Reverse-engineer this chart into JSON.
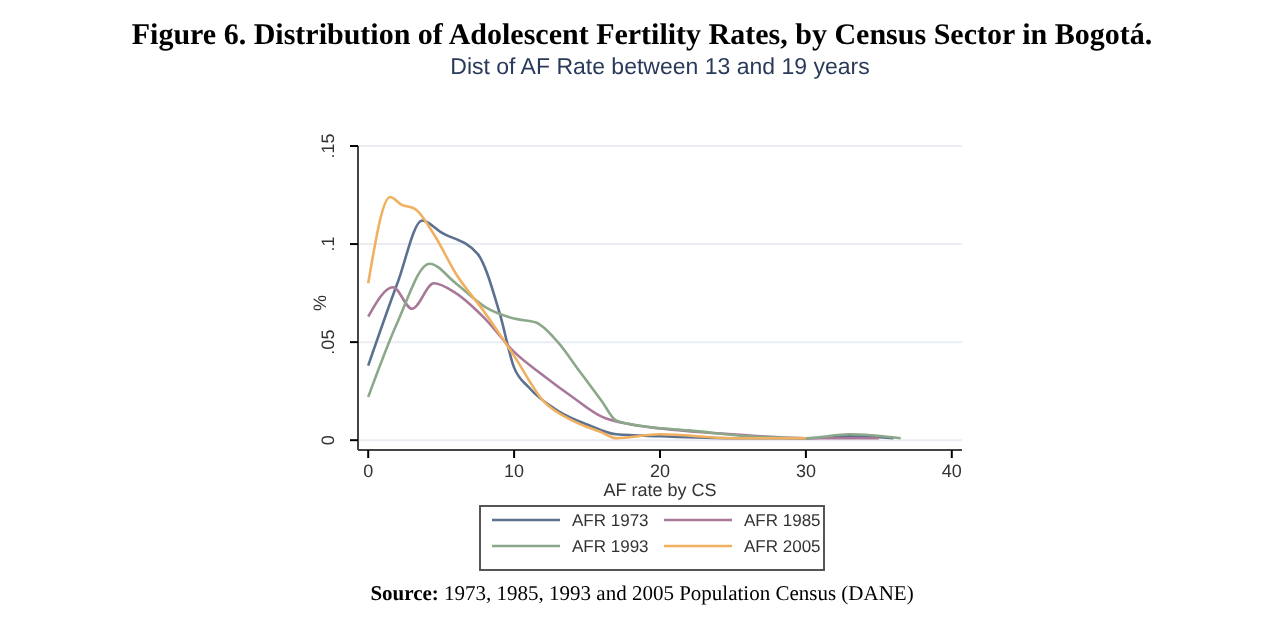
{
  "chart_data": {
    "type": "line",
    "title": "Figure 6. Distribution of Adolescent Fertility Rates, by Census Sector in Bogotá.",
    "subtitle": "Dist of AF Rate between 13 and 19 years",
    "xlabel": "AF rate by CS",
    "ylabel": "%",
    "xlim": [
      -0.7,
      40.7
    ],
    "xticks": [
      0,
      10,
      20,
      30,
      40
    ],
    "ylim": [
      -0.005,
      0.15
    ],
    "yticks": [
      0,
      {
        "value": 0.05,
        "label": ".05"
      },
      {
        "value": 0.1,
        "label": ".1"
      },
      {
        "value": 0.15,
        "label": ".15"
      }
    ],
    "grid": "y",
    "legend": "bottom",
    "marker": "none",
    "line_style": "solid",
    "series": [
      {
        "name": "AFR 1973",
        "color": "#5c7090",
        "x": [
          0,
          2,
          3.7,
          5,
          7.5,
          9,
          10,
          11,
          13,
          15,
          17,
          20,
          25,
          30,
          33,
          36
        ],
        "values": [
          0.038,
          0.08,
          0.112,
          0.106,
          0.095,
          0.065,
          0.037,
          0.027,
          0.015,
          0.008,
          0.003,
          0.002,
          0.001,
          0.001,
          0.002,
          0.001
        ]
      },
      {
        "name": "AFR 1985",
        "color": "#a87898",
        "x": [
          0,
          1.7,
          3,
          4.5,
          6,
          8,
          10,
          12,
          14,
          16,
          18,
          20,
          25,
          30,
          35
        ],
        "values": [
          0.063,
          0.078,
          0.067,
          0.08,
          0.075,
          0.062,
          0.045,
          0.033,
          0.022,
          0.012,
          0.008,
          0.006,
          0.003,
          0.001,
          0.001
        ]
      },
      {
        "name": "AFR 1993",
        "color": "#8ca88a",
        "x": [
          0,
          2,
          4.2,
          6,
          8,
          10,
          11.5,
          13,
          14.5,
          16,
          17,
          19,
          22,
          26,
          30,
          33,
          36.5
        ],
        "values": [
          0.022,
          0.06,
          0.09,
          0.08,
          0.068,
          0.062,
          0.06,
          0.05,
          0.035,
          0.02,
          0.01,
          0.007,
          0.005,
          0.002,
          0.001,
          0.003,
          0.001
        ]
      },
      {
        "name": "AFR 2005",
        "color": "#f0b060",
        "x": [
          0,
          1.5,
          2.3,
          3.2,
          4.5,
          6,
          8,
          10,
          12,
          14,
          16,
          17,
          20,
          25,
          30
        ],
        "values": [
          0.08,
          0.124,
          0.12,
          0.118,
          0.105,
          0.085,
          0.065,
          0.043,
          0.02,
          0.01,
          0.004,
          0.001,
          0.003,
          0.001,
          0.001
        ]
      }
    ],
    "annotations": [
      "Source: 1973, 1985, 1993 and 2005 Population Census (DANE)"
    ]
  }
}
